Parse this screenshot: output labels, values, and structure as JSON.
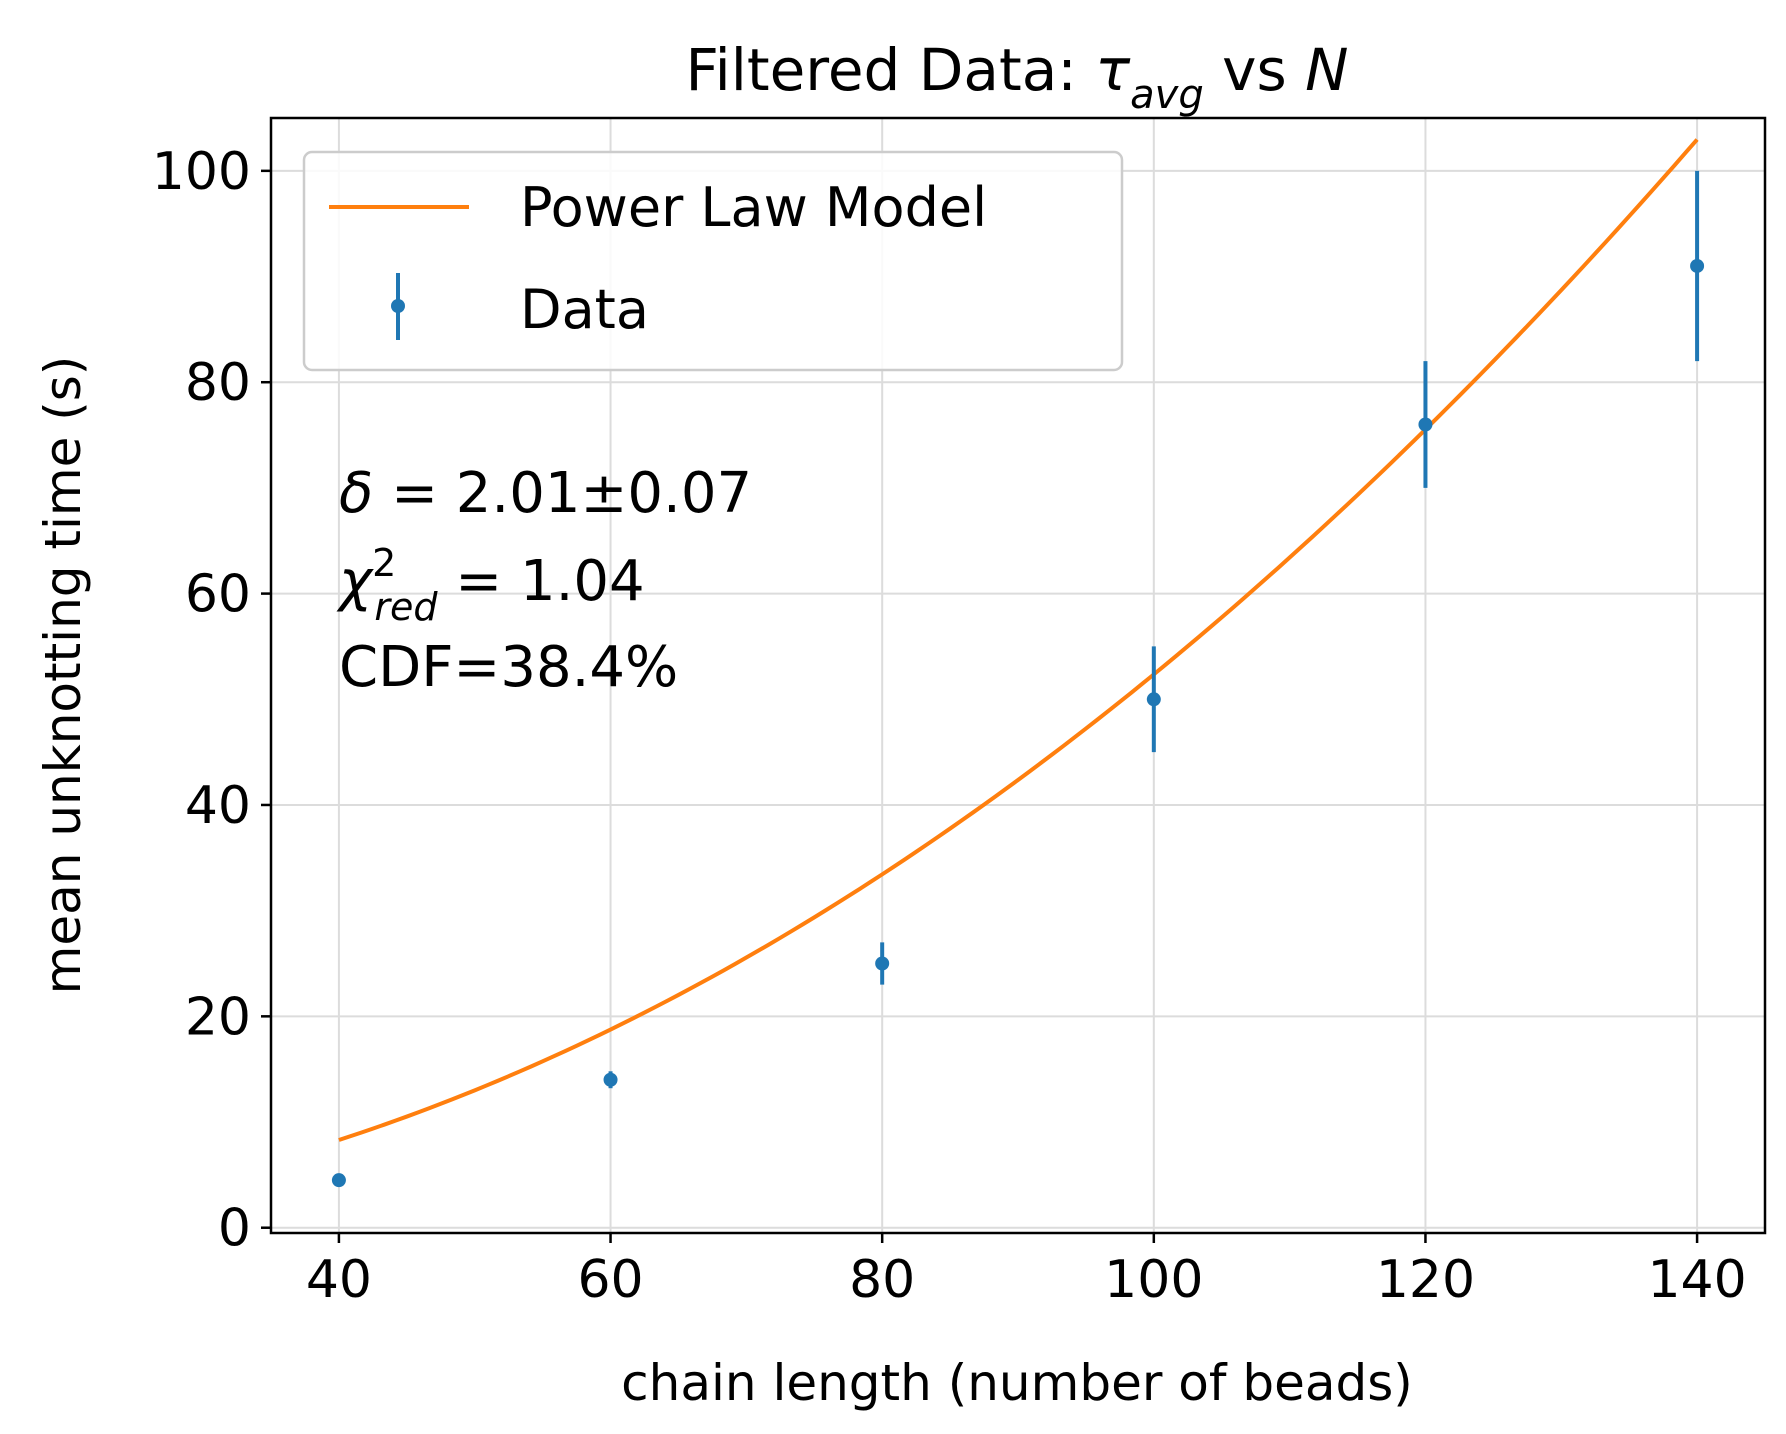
{
  "chart_data": {
    "type": "scatter",
    "title_parts": {
      "prefix": "Filtered Data: ",
      "tau": "τ",
      "tau_sub": "avg",
      "middle": " vs ",
      "n": "N"
    },
    "xlabel": "chain length (number of beads)",
    "ylabel": "mean unknotting time (s)",
    "xlim": [
      35,
      145
    ],
    "ylim": [
      -0.5,
      105
    ],
    "xticks": [
      40,
      60,
      80,
      100,
      120,
      140
    ],
    "yticks": [
      0,
      20,
      40,
      60,
      80,
      100
    ],
    "grid": true,
    "legend_position": "upper-left",
    "legend": {
      "model_label": "Power Law Model",
      "data_label": "Data"
    },
    "data_series": {
      "name": "Data",
      "color": "#1f77b4",
      "x": [
        40,
        60,
        80,
        100,
        120,
        140
      ],
      "y": [
        4.5,
        14,
        25,
        50,
        76,
        91
      ],
      "yerr": [
        0.3,
        0.8,
        2.0,
        5.0,
        6.0,
        9.0
      ]
    },
    "model_series": {
      "name": "Power Law Model",
      "color": "#ff7f0e",
      "amplitude": 0.005,
      "exponent": 2.01,
      "x_range": [
        40,
        140
      ]
    },
    "annotation": {
      "delta_symbol": "δ",
      "delta_value": " = 2.01±0.07",
      "chi_symbol": "χ",
      "chi_sup": "2",
      "chi_sub": "red",
      "chi_value": " = 1.04",
      "cdf_line": "CDF=38.4%"
    }
  }
}
